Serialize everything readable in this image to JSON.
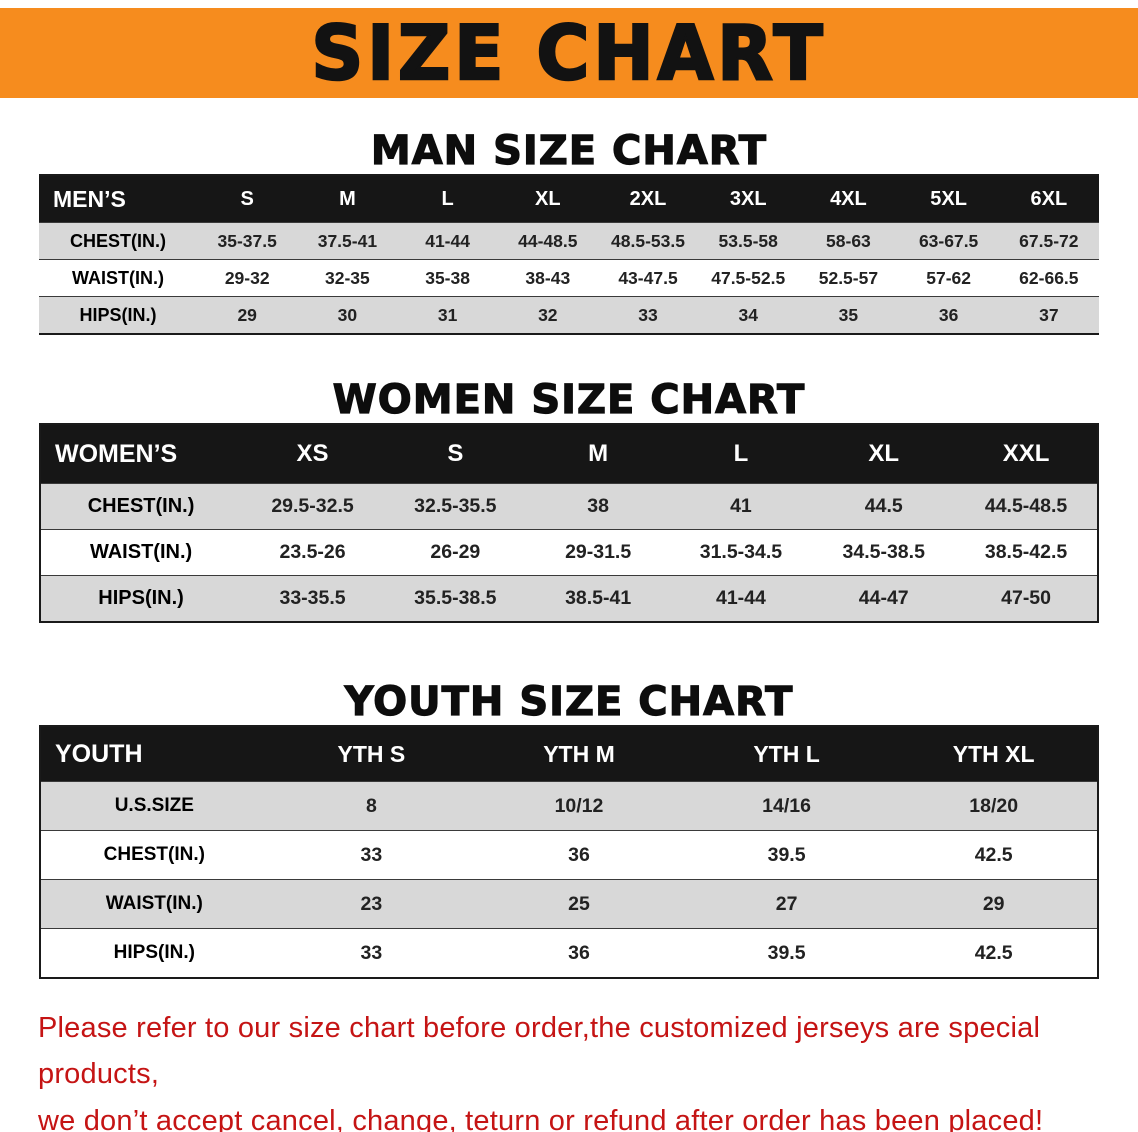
{
  "banner": {
    "title": "SIZE CHART",
    "bg_color": "#f68c1e",
    "text_color": "#121212"
  },
  "sections": [
    {
      "heading": "MAN SIZE CHART",
      "table": {
        "header": [
          "MEN’S",
          "S",
          "M",
          "L",
          "XL",
          "2XL",
          "3XL",
          "4XL",
          "5XL",
          "6XL"
        ],
        "rows": [
          [
            "CHEST(IN.)",
            "35-37.5",
            "37.5-41",
            "41-44",
            "44-48.5",
            "48.5-53.5",
            "53.5-58",
            "58-63",
            "63-67.5",
            "67.5-72"
          ],
          [
            "WAIST(IN.)",
            "29-32",
            "32-35",
            "35-38",
            "38-43",
            "43-47.5",
            "47.5-52.5",
            "52.5-57",
            "57-62",
            "62-66.5"
          ],
          [
            "HIPS(IN.)",
            "29",
            "30",
            "31",
            "32",
            "33",
            "34",
            "35",
            "36",
            "37"
          ]
        ]
      }
    },
    {
      "heading": "WOMEN SIZE CHART",
      "table": {
        "header": [
          "WOMEN’S",
          "XS",
          "S",
          "M",
          "L",
          "XL",
          "XXL"
        ],
        "rows": [
          [
            "CHEST(IN.)",
            "29.5-32.5",
            "32.5-35.5",
            "38",
            "41",
            "44.5",
            "44.5-48.5"
          ],
          [
            "WAIST(IN.)",
            "23.5-26",
            "26-29",
            "29-31.5",
            "31.5-34.5",
            "34.5-38.5",
            "38.5-42.5"
          ],
          [
            "HIPS(IN.)",
            "33-35.5",
            "35.5-38.5",
            "38.5-41",
            "41-44",
            "44-47",
            "47-50"
          ]
        ]
      }
    },
    {
      "heading": "YOUTH SIZE CHART",
      "table": {
        "header": [
          "YOUTH",
          "YTH S",
          "YTH M",
          "YTH L",
          "YTH XL"
        ],
        "rows": [
          [
            "U.S.SIZE",
            "8",
            "10/12",
            "14/16",
            "18/20"
          ],
          [
            "CHEST(IN.)",
            "33",
            "36",
            "39.5",
            "42.5"
          ],
          [
            "WAIST(IN.)",
            "23",
            "25",
            "27",
            "29"
          ],
          [
            "HIPS(IN.)",
            "33",
            "36",
            "39.5",
            "42.5"
          ]
        ]
      }
    }
  ],
  "footer": {
    "line1": "Please refer to our size chart before order,the customized jerseys are special products,",
    "line2": "we don’t accept cancel, change, teturn or refund after order has been placed!",
    "text_color": "#c51414"
  }
}
